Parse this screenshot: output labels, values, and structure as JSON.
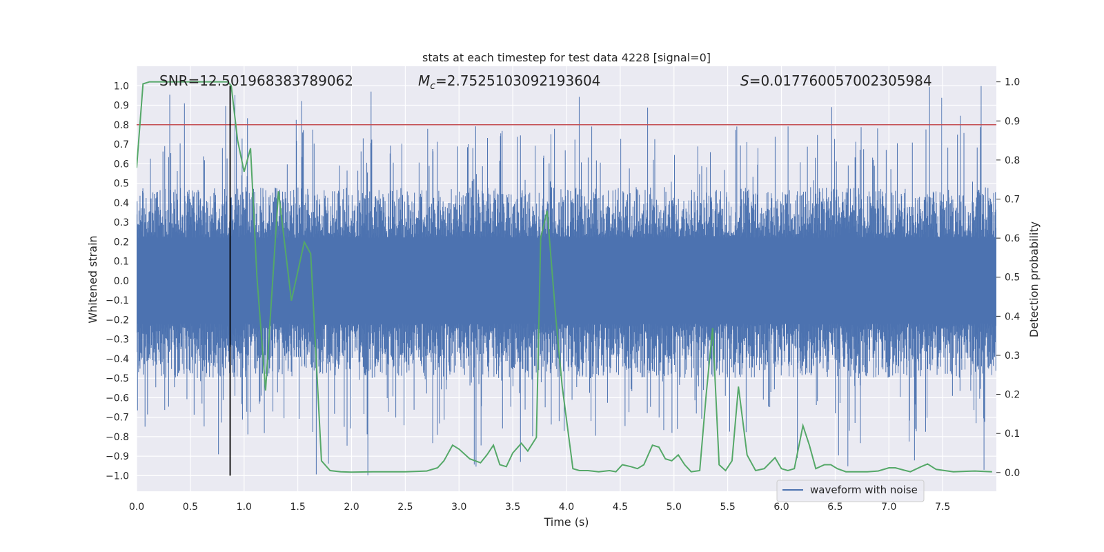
{
  "chart_data": {
    "type": "line",
    "title": "stats at each timestep for test data 4228 [signal=0]",
    "xlabel": "Time (s)",
    "ylabel_left": "Whitened strain",
    "ylabel_right": "Detection probability",
    "xlim": [
      0,
      8
    ],
    "ylim_left": [
      -1.08,
      1.1
    ],
    "ylim_right": [
      -0.048,
      1.04
    ],
    "x_ticks": [
      "0.0",
      "0.5",
      "1.0",
      "1.5",
      "2.0",
      "2.5",
      "3.0",
      "3.5",
      "4.0",
      "4.5",
      "5.0",
      "5.5",
      "6.0",
      "6.5",
      "7.0",
      "7.5"
    ],
    "y_ticks_left": [
      "1.0",
      "0.9",
      "0.8",
      "0.7",
      "0.6",
      "0.5",
      "0.4",
      "0.3",
      "0.2",
      "0.1",
      "0.0",
      "−0.1",
      "−0.2",
      "−0.3",
      "−0.4",
      "−0.5",
      "−0.6",
      "−0.7",
      "−0.8",
      "−0.9",
      "−1.0"
    ],
    "y_ticks_right": [
      "1.0",
      "0.9",
      "0.8",
      "0.7",
      "0.6",
      "0.5",
      "0.4",
      "0.3",
      "0.2",
      "0.1",
      "0.0"
    ],
    "annotations": {
      "snr": "SNR=12.501968383789062",
      "mc_symbol": "M",
      "mc_sub": "c",
      "mc_value": "=2.7525103092193604",
      "s_symbol": "S",
      "s_value": "=0.017760057002305984"
    },
    "legend": {
      "placement": "lower-right",
      "entries": [
        "waveform with noise"
      ]
    },
    "threshold_line": {
      "y": 0.8,
      "color": "#c44e52"
    },
    "vertical_line": {
      "x": 0.87,
      "color": "#000000"
    },
    "waveform": {
      "name": "waveform with noise",
      "color": "#4c72b0",
      "band": [
        -0.19,
        0.21
      ],
      "peak_max": 1.0,
      "peak_min": -1.0
    },
    "probability": {
      "name": "Detection probability",
      "color": "#55a868",
      "x": [
        0.0,
        0.06,
        0.12,
        0.2,
        0.4,
        0.6,
        0.75,
        0.85,
        0.88,
        0.94,
        1.0,
        1.06,
        1.12,
        1.2,
        1.32,
        1.44,
        1.56,
        1.62,
        1.72,
        1.8,
        1.9,
        2.0,
        2.2,
        2.5,
        2.7,
        2.8,
        2.86,
        2.94,
        3.0,
        3.1,
        3.2,
        3.26,
        3.32,
        3.38,
        3.44,
        3.5,
        3.58,
        3.64,
        3.72,
        3.76,
        3.82,
        3.9,
        3.96,
        4.06,
        4.12,
        4.2,
        4.3,
        4.4,
        4.46,
        4.52,
        4.6,
        4.66,
        4.72,
        4.8,
        4.86,
        4.92,
        4.98,
        5.04,
        5.1,
        5.16,
        5.24,
        5.3,
        5.36,
        5.42,
        5.48,
        5.54,
        5.6,
        5.68,
        5.76,
        5.84,
        5.94,
        6.0,
        6.06,
        6.12,
        6.2,
        6.26,
        6.32,
        6.4,
        6.46,
        6.52,
        6.6,
        6.7,
        6.8,
        6.9,
        7.0,
        7.06,
        7.14,
        7.2,
        7.3,
        7.36,
        7.44,
        7.6,
        7.8,
        7.96
      ],
      "y": [
        0.78,
        0.995,
        1.0,
        1.0,
        1.0,
        1.0,
        1.0,
        1.0,
        0.99,
        0.85,
        0.77,
        0.83,
        0.5,
        0.21,
        0.72,
        0.44,
        0.59,
        0.56,
        0.03,
        0.005,
        0.002,
        0.001,
        0.002,
        0.002,
        0.004,
        0.012,
        0.03,
        0.07,
        0.06,
        0.035,
        0.025,
        0.045,
        0.07,
        0.02,
        0.015,
        0.05,
        0.075,
        0.055,
        0.09,
        0.6,
        0.67,
        0.4,
        0.22,
        0.01,
        0.005,
        0.005,
        0.002,
        0.005,
        0.002,
        0.02,
        0.015,
        0.01,
        0.02,
        0.07,
        0.065,
        0.035,
        0.03,
        0.045,
        0.02,
        0.002,
        0.005,
        0.2,
        0.37,
        0.02,
        0.005,
        0.03,
        0.22,
        0.045,
        0.005,
        0.01,
        0.038,
        0.01,
        0.005,
        0.01,
        0.12,
        0.07,
        0.01,
        0.02,
        0.02,
        0.01,
        0.002,
        0.002,
        0.002,
        0.004,
        0.012,
        0.012,
        0.006,
        0.002,
        0.015,
        0.022,
        0.008,
        0.002,
        0.004,
        0.002
      ]
    }
  }
}
